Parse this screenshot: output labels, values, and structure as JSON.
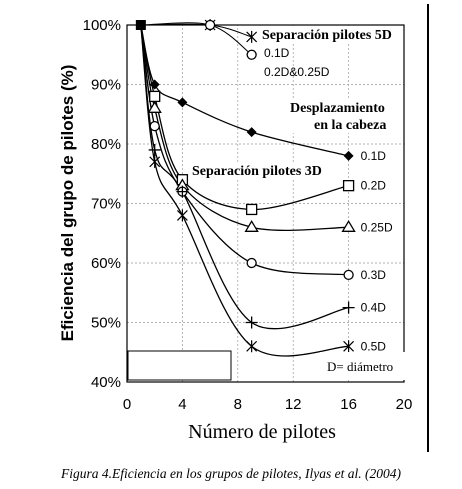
{
  "caption": "Figura 4.Eficiencia en los grupos de pilotes, Ilyas et al. (2004)",
  "chart_data": {
    "type": "line",
    "xlabel": "Número de pilotes",
    "ylabel": "Eficiencia del grupo de pilotes (%)",
    "xlim": [
      0,
      20
    ],
    "ylim": [
      40,
      100
    ],
    "xticks": [
      0,
      4,
      8,
      12,
      16,
      20
    ],
    "yticks": [
      40,
      50,
      60,
      70,
      80,
      90,
      100
    ],
    "ytick_labels": [
      "40%",
      "50%",
      "60%",
      "70%",
      "80%",
      "90%",
      "100%"
    ],
    "grid": true,
    "annotations": {
      "sep5d": "Separación pilotes 5D",
      "sep3d": "Separación pilotes 3D",
      "desp1": "Desplazamiento",
      "desp2": "en la cabeza",
      "diam": "D= diámetro",
      "lbl_5d_01": "0.1D",
      "lbl_5d_02": "0.2D&0.25D"
    },
    "series": [
      {
        "name": "0.1D",
        "marker": "diamond",
        "x": [
          1,
          2,
          4,
          9,
          16
        ],
        "y": [
          100,
          90,
          87,
          82,
          78
        ]
      },
      {
        "name": "0.2D",
        "marker": "square",
        "x": [
          1,
          2,
          4,
          9,
          16
        ],
        "y": [
          100,
          88,
          74,
          69,
          73
        ]
      },
      {
        "name": "0.25D",
        "marker": "triangle",
        "x": [
          1,
          2,
          4,
          9,
          16
        ],
        "y": [
          100,
          86,
          73,
          66,
          66
        ]
      },
      {
        "name": "0.3D",
        "marker": "circle",
        "x": [
          1,
          2,
          4,
          9,
          16
        ],
        "y": [
          100,
          83,
          72,
          60,
          58
        ]
      },
      {
        "name": "0.4D",
        "marker": "plus",
        "x": [
          1,
          2,
          4,
          9,
          16
        ],
        "y": [
          100,
          79,
          72,
          50,
          52.5
        ]
      },
      {
        "name": "0.5D",
        "marker": "asterisk",
        "x": [
          1,
          2,
          4,
          9,
          16
        ],
        "y": [
          100,
          77,
          68,
          46,
          46
        ]
      },
      {
        "name": "",
        "group": "5D",
        "marker": "asterisk",
        "x": [
          1,
          6,
          9
        ],
        "y": [
          100,
          100,
          98
        ]
      },
      {
        "name": "",
        "group": "5D",
        "marker": "circle",
        "x": [
          1,
          6,
          9
        ],
        "y": [
          100,
          100,
          95
        ]
      }
    ]
  }
}
